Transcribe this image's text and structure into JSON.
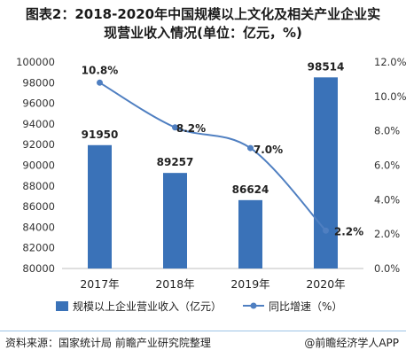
{
  "title_line1": "图表2：2018-2020年中国规模以上文化及相关产业企业实",
  "title_line2": "现营业收入情况(单位：亿元，%)",
  "footer": {
    "source": "资料来源：国家统计局 前瞻产业研究院整理",
    "brand": "@前瞻经济学人APP"
  },
  "chart_data": {
    "type": "bar",
    "categories": [
      "2017年",
      "2018年",
      "2019年",
      "2020年"
    ],
    "series": [
      {
        "name": "规模以上企业营业收入（亿元）",
        "type": "bar",
        "axis": "left",
        "values": [
          91950,
          89257,
          86624,
          98514
        ],
        "labels": [
          "91950",
          "89257",
          "86624",
          "98514"
        ],
        "color": "#3a72b8"
      },
      {
        "name": "同比增速（%）",
        "type": "line",
        "axis": "right",
        "values": [
          10.8,
          8.2,
          7.0,
          2.2
        ],
        "labels": [
          "10.8%",
          "8.2%",
          "7.0%",
          "2.2%"
        ],
        "color": "#4f7fc1"
      }
    ],
    "y_left": {
      "min": 80000,
      "max": 100000,
      "step": 2000,
      "ticks": [
        "80000",
        "82000",
        "84000",
        "86000",
        "88000",
        "90000",
        "92000",
        "94000",
        "96000",
        "98000",
        "100000"
      ]
    },
    "y_right": {
      "min": 0,
      "max": 12,
      "step": 2,
      "ticks": [
        "0.0%",
        "2.0%",
        "4.0%",
        "6.0%",
        "8.0%",
        "10.0%",
        "12.0%"
      ]
    },
    "legend_position": "bottom",
    "grid": false
  }
}
